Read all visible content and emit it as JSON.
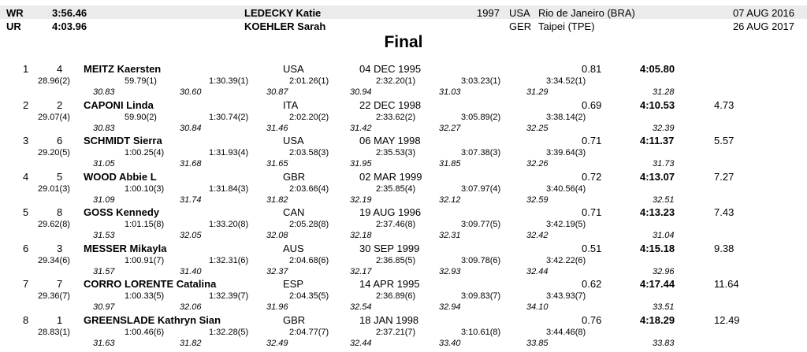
{
  "records": [
    {
      "code": "WR",
      "time": "3:56.46",
      "name": "LEDECKY Katie",
      "year": "1997",
      "nat": "USA",
      "place": "Rio de Janeiro (BRA)",
      "date": "07 AUG 2016"
    },
    {
      "code": "UR",
      "time": "4:03.96",
      "name": "KOEHLER Sarah",
      "year": "",
      "nat": "GER",
      "place": "Taipei (TPE)",
      "date": "26 AUG 2017"
    }
  ],
  "title": "Final",
  "results": [
    {
      "rank": "1",
      "lane": "4",
      "name": "MEITZ Kaersten",
      "nat": "USA",
      "dob": "04 DEC 1995",
      "rt": "0.81",
      "final": "4:05.80",
      "behind": "",
      "splits": [
        "28.96(2)",
        "59.79(1)",
        "1:30.39(1)",
        "2:01.26(1)",
        "2:32.20(1)",
        "3:03.23(1)",
        "3:34.52(1)"
      ],
      "laps": [
        "30.83",
        "30.60",
        "30.87",
        "30.94",
        "31.03",
        "31.29",
        "31.28"
      ]
    },
    {
      "rank": "2",
      "lane": "2",
      "name": "CAPONI Linda",
      "nat": "ITA",
      "dob": "22 DEC 1998",
      "rt": "0.69",
      "final": "4:10.53",
      "behind": "4.73",
      "splits": [
        "29.07(4)",
        "59.90(2)",
        "1:30.74(2)",
        "2:02.20(2)",
        "2:33.62(2)",
        "3:05.89(2)",
        "3:38.14(2)"
      ],
      "laps": [
        "30.83",
        "30.84",
        "31.46",
        "31.42",
        "32.27",
        "32.25",
        "32.39"
      ]
    },
    {
      "rank": "3",
      "lane": "6",
      "name": "SCHMIDT Sierra",
      "nat": "USA",
      "dob": "06 MAY 1998",
      "rt": "0.71",
      "final": "4:11.37",
      "behind": "5.57",
      "splits": [
        "29.20(5)",
        "1:00.25(4)",
        "1:31.93(4)",
        "2:03.58(3)",
        "2:35.53(3)",
        "3:07.38(3)",
        "3:39.64(3)"
      ],
      "laps": [
        "31.05",
        "31.68",
        "31.65",
        "31.95",
        "31.85",
        "32.26",
        "31.73"
      ]
    },
    {
      "rank": "4",
      "lane": "5",
      "name": "WOOD Abbie L",
      "nat": "GBR",
      "dob": "02 MAR 1999",
      "rt": "0.72",
      "final": "4:13.07",
      "behind": "7.27",
      "splits": [
        "29.01(3)",
        "1:00.10(3)",
        "1:31.84(3)",
        "2:03.66(4)",
        "2:35.85(4)",
        "3:07.97(4)",
        "3:40.56(4)"
      ],
      "laps": [
        "31.09",
        "31.74",
        "31.82",
        "32.19",
        "32.12",
        "32.59",
        "32.51"
      ]
    },
    {
      "rank": "5",
      "lane": "8",
      "name": "GOSS Kennedy",
      "nat": "CAN",
      "dob": "19 AUG 1996",
      "rt": "0.71",
      "final": "4:13.23",
      "behind": "7.43",
      "splits": [
        "29.62(8)",
        "1:01.15(8)",
        "1:33.20(8)",
        "2:05.28(8)",
        "2:37.46(8)",
        "3:09.77(5)",
        "3:42.19(5)"
      ],
      "laps": [
        "31.53",
        "32.05",
        "32.08",
        "32.18",
        "32.31",
        "32.42",
        "31.04"
      ]
    },
    {
      "rank": "6",
      "lane": "3",
      "name": "MESSER Mikayla",
      "nat": "AUS",
      "dob": "30 SEP 1999",
      "rt": "0.51",
      "final": "4:15.18",
      "behind": "9.38",
      "splits": [
        "29.34(6)",
        "1:00.91(7)",
        "1:32.31(6)",
        "2:04.68(6)",
        "2:36.85(5)",
        "3:09.78(6)",
        "3:42.22(6)"
      ],
      "laps": [
        "31.57",
        "31.40",
        "32.37",
        "32.17",
        "32.93",
        "32.44",
        "32.96"
      ]
    },
    {
      "rank": "7",
      "lane": "7",
      "name": "CORRO LORENTE Catalina",
      "nat": "ESP",
      "dob": "14 APR 1995",
      "rt": "0.62",
      "final": "4:17.44",
      "behind": "11.64",
      "splits": [
        "29.36(7)",
        "1:00.33(5)",
        "1:32.39(7)",
        "2:04.35(5)",
        "2:36.89(6)",
        "3:09.83(7)",
        "3:43.93(7)"
      ],
      "laps": [
        "30.97",
        "32.06",
        "31.96",
        "32.54",
        "32.94",
        "34.10",
        "33.51"
      ]
    },
    {
      "rank": "8",
      "lane": "1",
      "name": "GREENSLADE Kathryn Sian",
      "nat": "GBR",
      "dob": "18 JAN 1998",
      "rt": "0.76",
      "final": "4:18.29",
      "behind": "12.49",
      "splits": [
        "28.83(1)",
        "1:00.46(6)",
        "1:32.28(5)",
        "2:04.77(7)",
        "2:37.21(7)",
        "3:10.61(8)",
        "3:44.46(8)"
      ],
      "laps": [
        "31.63",
        "31.82",
        "32.49",
        "32.44",
        "33.40",
        "33.85",
        "33.83"
      ]
    }
  ]
}
